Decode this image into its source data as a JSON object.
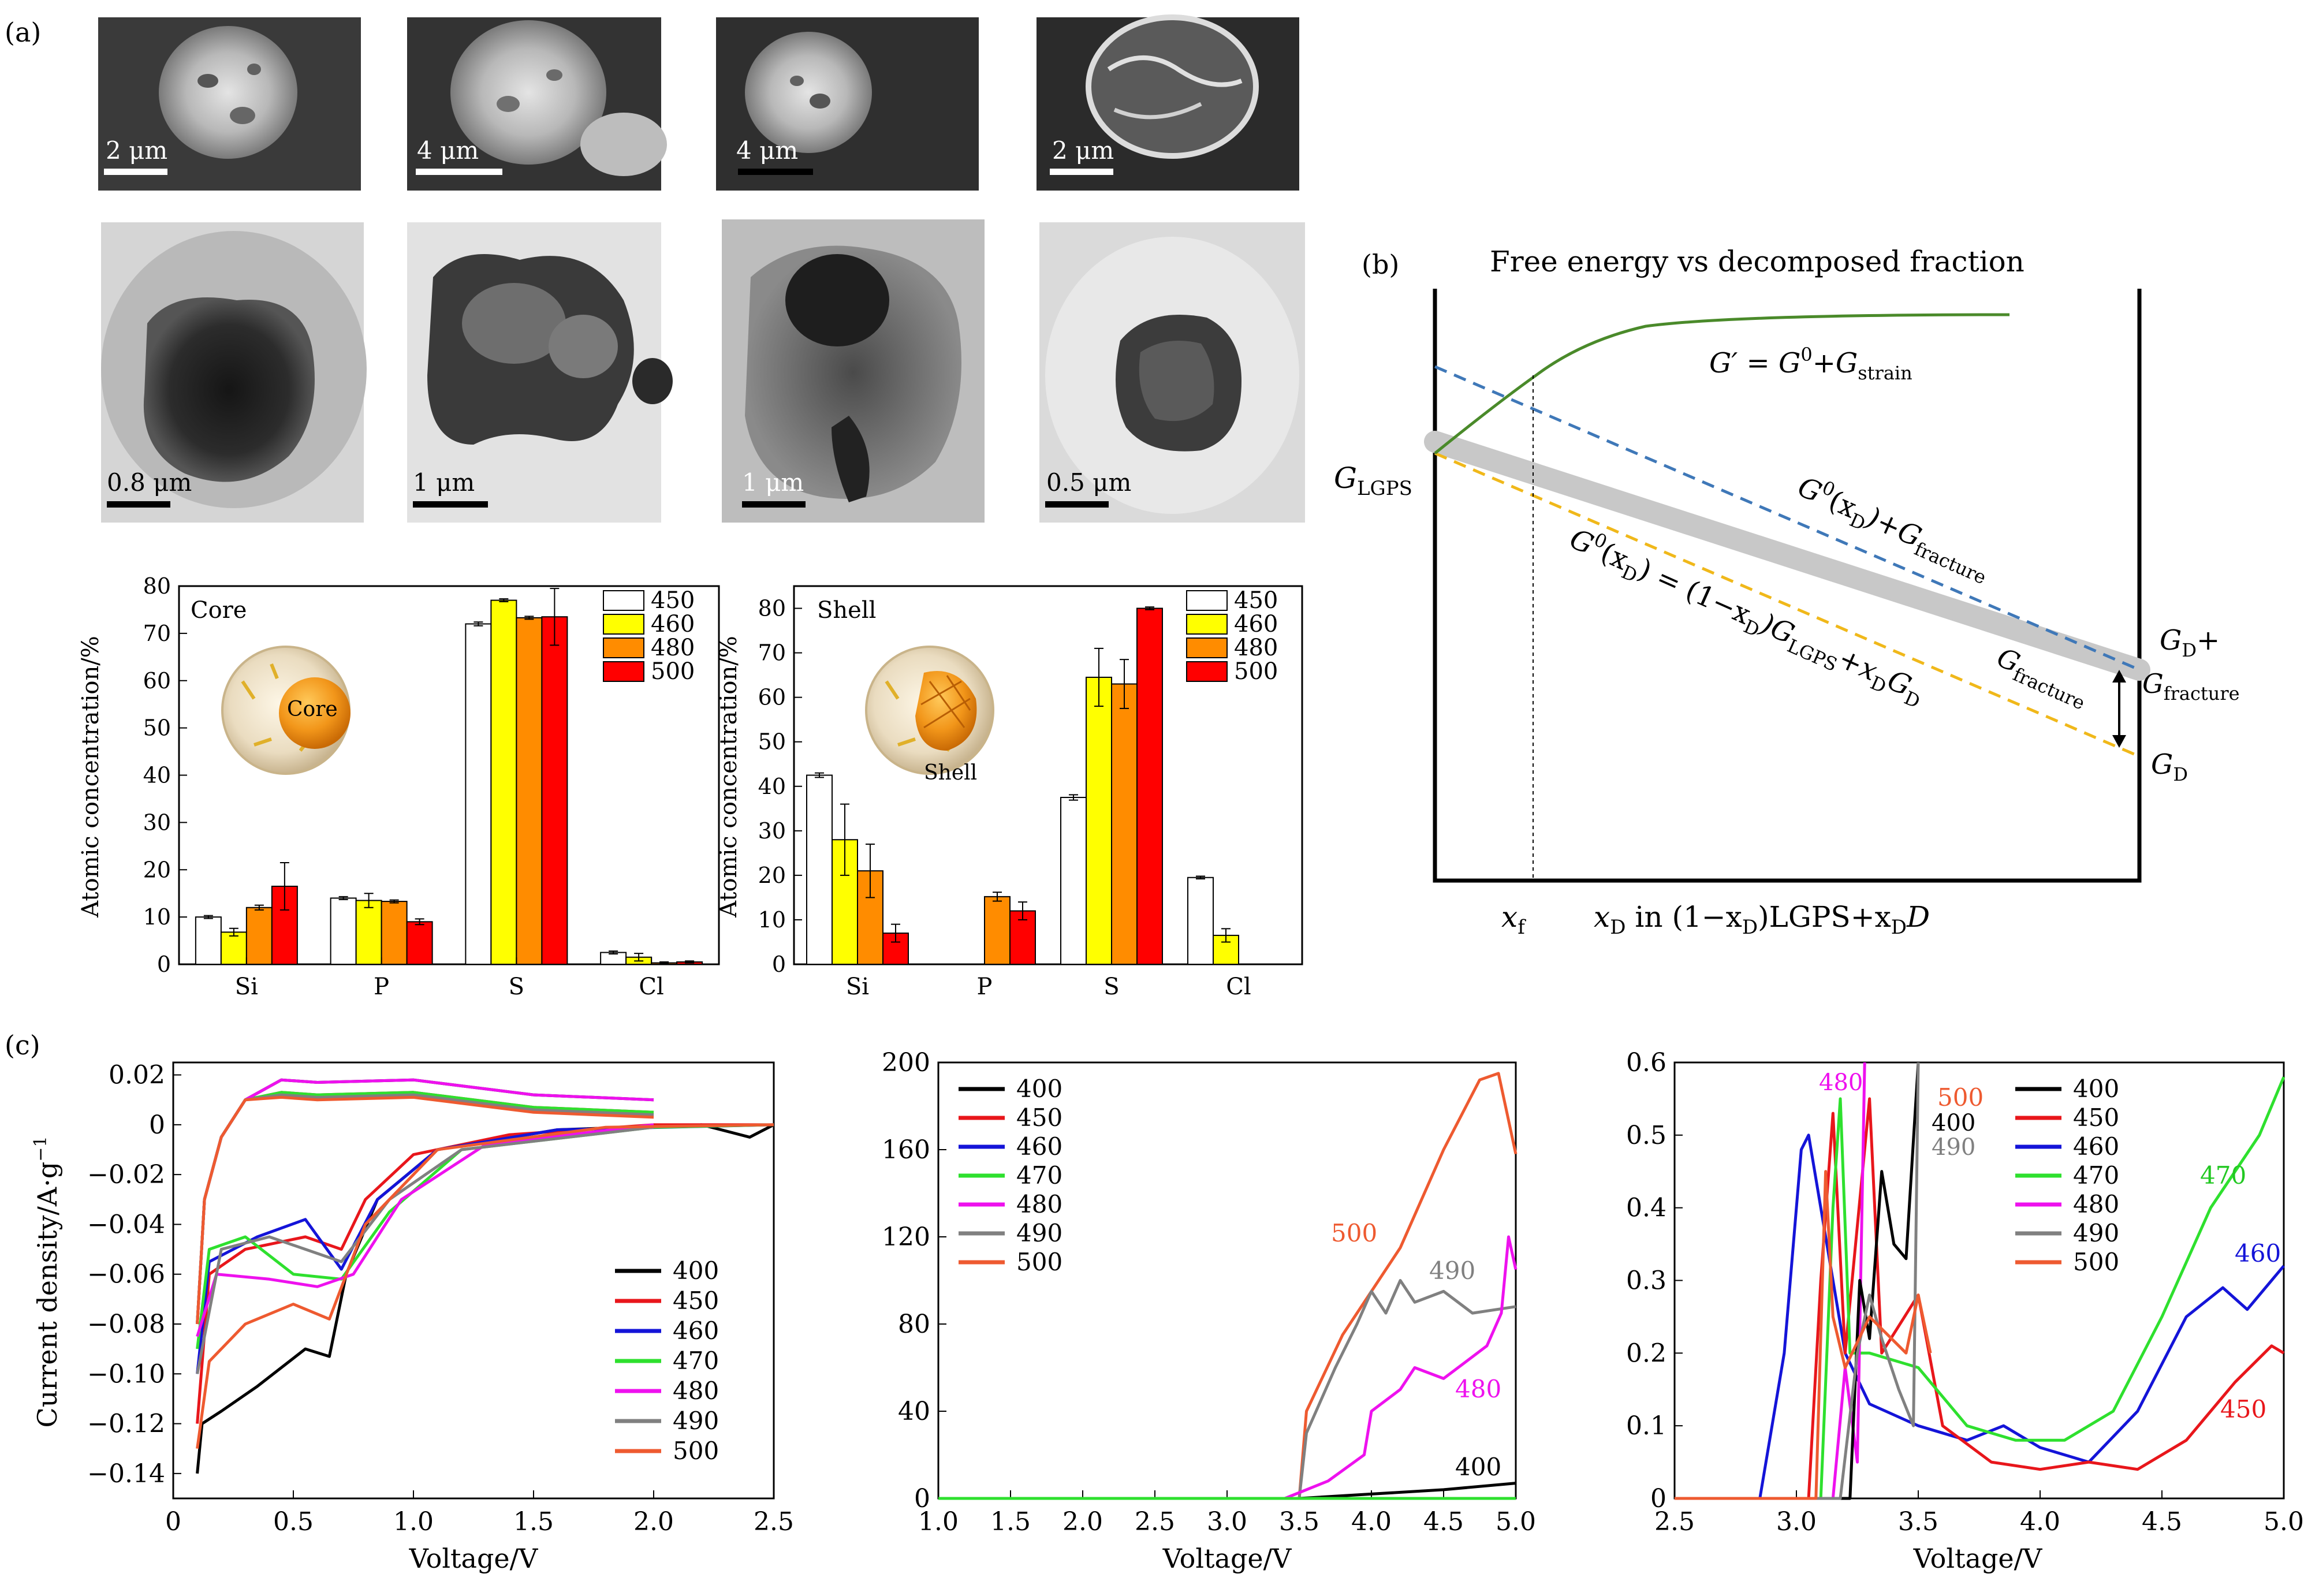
{
  "panels": {
    "a": "(a)",
    "b": "(b)",
    "c": "(c)"
  },
  "micrographs": {
    "sem_scales": [
      "2 μm",
      "4 μm",
      "4 μm",
      "2 μm"
    ],
    "tem_scales": [
      "0.8 μm",
      "1 μm",
      "1 μm",
      "0.5 μm"
    ]
  },
  "core_chart": {
    "title": "Core",
    "inset_label": "Core",
    "ylabel": "Atomic concentration/%",
    "chart_data": {
      "type": "bar",
      "categories": [
        "Si",
        "P",
        "S",
        "Cl"
      ],
      "series": [
        {
          "name": "450",
          "color": "#ffffff",
          "values": [
            10,
            14,
            72,
            2.5
          ],
          "err": [
            0.3,
            0.3,
            0.4,
            0.3
          ]
        },
        {
          "name": "460",
          "color": "#ffff00",
          "values": [
            6.8,
            13.5,
            77,
            1.5
          ],
          "err": [
            0.8,
            1.5,
            0.3,
            0.8
          ]
        },
        {
          "name": "480",
          "color": "#ff8c00",
          "values": [
            12,
            13.3,
            73.3,
            0.3
          ],
          "err": [
            0.5,
            0.3,
            0.3,
            0.2
          ]
        },
        {
          "name": "500",
          "color": "#ff0000",
          "values": [
            16.5,
            9,
            73.5,
            0.5
          ],
          "err": [
            5,
            0.6,
            6,
            0.2
          ]
        }
      ],
      "ylim": [
        0,
        80
      ],
      "yticks": [
        "0",
        "10",
        "20",
        "30",
        "40",
        "50",
        "60",
        "70",
        "80"
      ]
    }
  },
  "shell_chart": {
    "title": "Shell",
    "inset_label": "Shell",
    "ylabel": "Atomic concentration/%",
    "chart_data": {
      "type": "bar",
      "categories": [
        "Si",
        "P",
        "S",
        "Cl"
      ],
      "series": [
        {
          "name": "450",
          "color": "#ffffff",
          "values": [
            42.5,
            0,
            37.5,
            19.5
          ],
          "err": [
            0.5,
            0,
            0.6,
            0.3
          ]
        },
        {
          "name": "460",
          "color": "#ffff00",
          "values": [
            28,
            0,
            64.5,
            6.5
          ],
          "err": [
            8,
            0,
            6.5,
            1.5
          ]
        },
        {
          "name": "480",
          "color": "#ff8c00",
          "values": [
            21,
            15.2,
            63,
            0
          ],
          "err": [
            6,
            1,
            5.5,
            0
          ]
        },
        {
          "name": "500",
          "color": "#ff0000",
          "values": [
            7,
            12,
            80,
            0
          ],
          "err": [
            2,
            2,
            0.3,
            0
          ]
        }
      ],
      "ylim": [
        0,
        85
      ],
      "yticks": [
        "0",
        "10",
        "20",
        "30",
        "40",
        "50",
        "60",
        "70",
        "80"
      ]
    }
  },
  "energy_diagram": {
    "title": "Free energy vs decomposed fraction",
    "g_lgps": "G",
    "g_lgps_sub": "LGPS",
    "g_strain_a": "G′ = G",
    "g_strain_b": "0",
    "g_strain_c": "+G",
    "g_strain_sub": "strain",
    "g_fracture_a": "G",
    "g_fracture_b": "0",
    "g_fracture_c": "(x",
    "g_fracture_d": "D",
    "g_fracture_e": ")+G",
    "g_fracture_sub": "fracture",
    "g_lin_a": "G",
    "g_lin_b": "0",
    "g_lin_c": "(x",
    "g_lin_d": "D",
    "g_lin_e": ") = (1−x",
    "g_lin_f": "D",
    "g_lin_g": ")G",
    "g_lin_h": "LGPS",
    "g_lin_i": "+x",
    "g_lin_j": "D",
    "g_lin_k": "G",
    "g_lin_l": "D",
    "gap_a": "G",
    "gap_sub": "fracture",
    "right_top_a": "G",
    "right_top_sub": "D",
    "right_top_c": "+",
    "right_mid_a": "G",
    "right_mid_sub": "fracture",
    "right_bot_a": "G",
    "right_bot_sub": "D",
    "xf_a": "x",
    "xf_sub": "f",
    "xlabel_a": "x",
    "xlabel_b": "D",
    "xlabel_c": " in (1−x",
    "xlabel_d": "D",
    "xlabel_e": ")LGPS+x",
    "xlabel_f": "D",
    "xlabel_g": "D"
  },
  "cv_chart": {
    "ylabel": "Current density/A·g",
    "ylabel_sup": "−1",
    "xlabel": "Voltage/V",
    "chart_data": {
      "type": "line",
      "xlim": [
        0,
        2.5
      ],
      "ylim": [
        -0.15,
        0.025
      ],
      "xticks": [
        "0",
        "0.5",
        "1.0",
        "1.5",
        "2.0",
        "2.5"
      ],
      "yticks": [
        "0.02",
        "0",
        "−0.02",
        "−0.04",
        "−0.06",
        "−0.08",
        "−0.10",
        "−0.12",
        "−0.14"
      ],
      "legend": [
        "400",
        "450",
        "460",
        "470",
        "480",
        "490",
        "500"
      ]
    }
  },
  "ls_chart": {
    "xlabel": "Voltage/V",
    "chart_data": {
      "type": "line",
      "xlim": [
        1.0,
        5.0
      ],
      "ylim": [
        0,
        200
      ],
      "xticks": [
        "1.0",
        "1.5",
        "2.0",
        "2.5",
        "3.0",
        "3.5",
        "4.0",
        "4.5",
        "5.0"
      ],
      "yticks": [
        "0",
        "40",
        "80",
        "120",
        "160",
        "200"
      ],
      "legend": [
        "400",
        "450",
        "460",
        "470",
        "480",
        "490",
        "500"
      ],
      "annotations": [
        "500",
        "490",
        "480",
        "400"
      ]
    }
  },
  "zoom_chart": {
    "xlabel": "Voltage/V",
    "chart_data": {
      "type": "line",
      "xlim": [
        2.5,
        5.0
      ],
      "ylim": [
        0,
        0.6
      ],
      "xticks": [
        "2.5",
        "3.0",
        "3.5",
        "4.0",
        "4.5",
        "5.0"
      ],
      "yticks": [
        "0",
        "0.1",
        "0.2",
        "0.3",
        "0.4",
        "0.5",
        "0.6"
      ],
      "legend": [
        "400",
        "450",
        "460",
        "470",
        "480",
        "490",
        "500"
      ],
      "annotations": [
        "480",
        "500",
        "400",
        "490",
        "470",
        "460",
        "450"
      ]
    }
  },
  "series_colors": {
    "400": "#000000",
    "450": "#e8161b",
    "460": "#1414d8",
    "470": "#2ee02e",
    "480": "#ee11ee",
    "490": "#808080",
    "500": "#ee5a30"
  }
}
